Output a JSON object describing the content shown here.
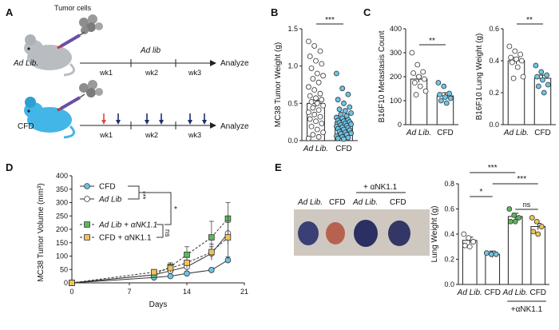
{
  "panels": {
    "A": {
      "label": "A",
      "tumor_cells_label": "Tumor cells",
      "rows": [
        {
          "group": "Ad Lib.",
          "top_label": "Ad lib",
          "weeks": [
            "wk1",
            "wk2",
            "wk3"
          ],
          "end": "Analyze"
        },
        {
          "group": "CFD",
          "weeks": [
            "wk1",
            "wk2",
            "wk3"
          ],
          "end": "Analyze"
        }
      ],
      "colors": {
        "ad_lib_mouse": "#b9bdc2",
        "cfd_mouse": "#42b6e6",
        "first_arrow": "#d94b3a",
        "arrows": "#1f2d6b"
      }
    },
    "B": {
      "label": "B"
    },
    "C": {
      "label": "C"
    },
    "D": {
      "label": "D"
    },
    "E": {
      "label": "E",
      "photo_header": "+ αNK1.1",
      "photo_labels": [
        "Ad Lib.",
        "CFD",
        "Ad Lib.",
        "CFD"
      ]
    }
  },
  "chart_data": [
    {
      "id": "B",
      "type": "scatter-bar",
      "ylabel": "MC38 Tumor Weight (g)",
      "ylim": [
        0,
        1.5
      ],
      "yticks": [
        "0.0",
        "0.5",
        "1.0",
        "1.5"
      ],
      "categories": [
        "Ad Lib.",
        "CFD"
      ],
      "means": [
        0.5,
        0.25
      ],
      "sig": "***",
      "points": [
        [
          1.33,
          1.27,
          1.2,
          1.13,
          1.07,
          1.03,
          0.97,
          0.9,
          0.87,
          0.83,
          0.78,
          0.72,
          0.68,
          0.63,
          0.6,
          0.57,
          0.55,
          0.52,
          0.5,
          0.47,
          0.44,
          0.41,
          0.38,
          0.35,
          0.32,
          0.29,
          0.26,
          0.23,
          0.19,
          0.15,
          0.11,
          0.08,
          0.05,
          0.03
        ],
        [
          0.9,
          0.7,
          0.62,
          0.55,
          0.5,
          0.45,
          0.42,
          0.4,
          0.37,
          0.35,
          0.33,
          0.31,
          0.3,
          0.28,
          0.27,
          0.26,
          0.25,
          0.24,
          0.23,
          0.22,
          0.21,
          0.2,
          0.19,
          0.18,
          0.17,
          0.16,
          0.15,
          0.14,
          0.12,
          0.11,
          0.1,
          0.09,
          0.08,
          0.06,
          0.05,
          0.04,
          0.03,
          0.02
        ]
      ],
      "colors": [
        "#ffffff",
        "#6bc5e8"
      ]
    },
    {
      "id": "C1",
      "type": "scatter-bar",
      "ylabel": "B16F10 Metastasis Count",
      "ylim": [
        0,
        400
      ],
      "yticks": [
        "0",
        "100",
        "200",
        "300",
        "400"
      ],
      "categories": [
        "Ad Lib.",
        "CFD"
      ],
      "means": [
        190,
        120
      ],
      "sig": "**",
      "points": [
        [
          300,
          250,
          220,
          215,
          200,
          190,
          175,
          160,
          140,
          125
        ],
        [
          175,
          160,
          130,
          125,
          115,
          110,
          100,
          90
        ]
      ],
      "colors": [
        "#ffffff",
        "#6bc5e8"
      ]
    },
    {
      "id": "C2",
      "type": "scatter-bar",
      "ylabel": "B16F10 Lung Weight (g)",
      "ylim": [
        0,
        0.6
      ],
      "yticks": [
        "0.0",
        "0.2",
        "0.4",
        "0.6"
      ],
      "categories": [
        "Ad Lib.",
        "CFD"
      ],
      "means": [
        0.4,
        0.29
      ],
      "sig": "**",
      "points": [
        [
          0.49,
          0.46,
          0.44,
          0.42,
          0.41,
          0.4,
          0.39,
          0.36,
          0.3,
          0.29
        ],
        [
          0.37,
          0.33,
          0.31,
          0.3,
          0.28,
          0.25,
          0.24,
          0.2
        ]
      ],
      "colors": [
        "#ffffff",
        "#6bc5e8"
      ]
    },
    {
      "id": "D",
      "type": "line",
      "xlabel": "Days",
      "ylabel": "MC38 Tumor Volume (mm³)",
      "xlim": [
        0,
        21
      ],
      "ylim": [
        0,
        400
      ],
      "xticks": [
        "0",
        "7",
        "14",
        "21"
      ],
      "yticks": [
        "0",
        "50",
        "100",
        "150",
        "200",
        "250",
        "300",
        "350",
        "400"
      ],
      "series": [
        {
          "name": "CFD",
          "color": "#6bc5e8",
          "marker": "circle",
          "dash": false,
          "x": [
            0,
            10,
            12,
            14,
            17,
            19
          ],
          "y": [
            0,
            20,
            25,
            35,
            48,
            85
          ],
          "err": [
            0,
            5,
            6,
            8,
            8,
            12
          ]
        },
        {
          "name": "Ad Lib",
          "color": "#ffffff",
          "marker": "circle",
          "dash": false,
          "x": [
            0,
            10,
            12,
            14,
            17,
            19
          ],
          "y": [
            0,
            30,
            45,
            60,
            110,
            185
          ],
          "err": [
            0,
            8,
            10,
            15,
            25,
            40
          ]
        },
        {
          "name": "Ad Lib + αNK1.1",
          "color": "#5cb85c",
          "marker": "square",
          "dash": true,
          "x": [
            0,
            10,
            12,
            14,
            17,
            19
          ],
          "y": [
            0,
            30,
            60,
            105,
            170,
            240
          ],
          "err": [
            0,
            10,
            15,
            30,
            60,
            60
          ]
        },
        {
          "name": "CFD + αNK1.1",
          "color": "#f0c35a",
          "marker": "square",
          "dash": true,
          "x": [
            0,
            10,
            12,
            14,
            17,
            19
          ],
          "y": [
            0,
            40,
            55,
            75,
            115,
            170
          ],
          "err": [
            0,
            10,
            15,
            20,
            30,
            80
          ]
        }
      ],
      "legend_labels": [
        "CFD",
        "Ad Lib",
        "Ad Lib + αNK1.1",
        "CFD + αNK1.1"
      ],
      "sig": [
        "***",
        "*",
        "ns"
      ]
    },
    {
      "id": "E",
      "type": "scatter-bar",
      "ylabel": "Lung Weight (g)",
      "ylim": [
        0,
        0.8
      ],
      "yticks": [
        "0.0",
        "0.2",
        "0.4",
        "0.6",
        "0.8"
      ],
      "categories": [
        "Ad Lib.",
        "CFD",
        "Ad Lib.",
        "CFD"
      ],
      "group_label": "+αNK1.1",
      "means": [
        0.35,
        0.24,
        0.54,
        0.46
      ],
      "sig": [
        "***",
        "*",
        "***",
        "ns"
      ],
      "points": [
        [
          0.4,
          0.37,
          0.34,
          0.31,
          0.3
        ],
        [
          0.25,
          0.24,
          0.24
        ],
        [
          0.6,
          0.55,
          0.53,
          0.5,
          0.5
        ],
        [
          0.53,
          0.5,
          0.46,
          0.42,
          0.4
        ]
      ],
      "colors": [
        "#ffffff",
        "#6bc5e8",
        "#5cb85c",
        "#f0c35a"
      ]
    }
  ]
}
